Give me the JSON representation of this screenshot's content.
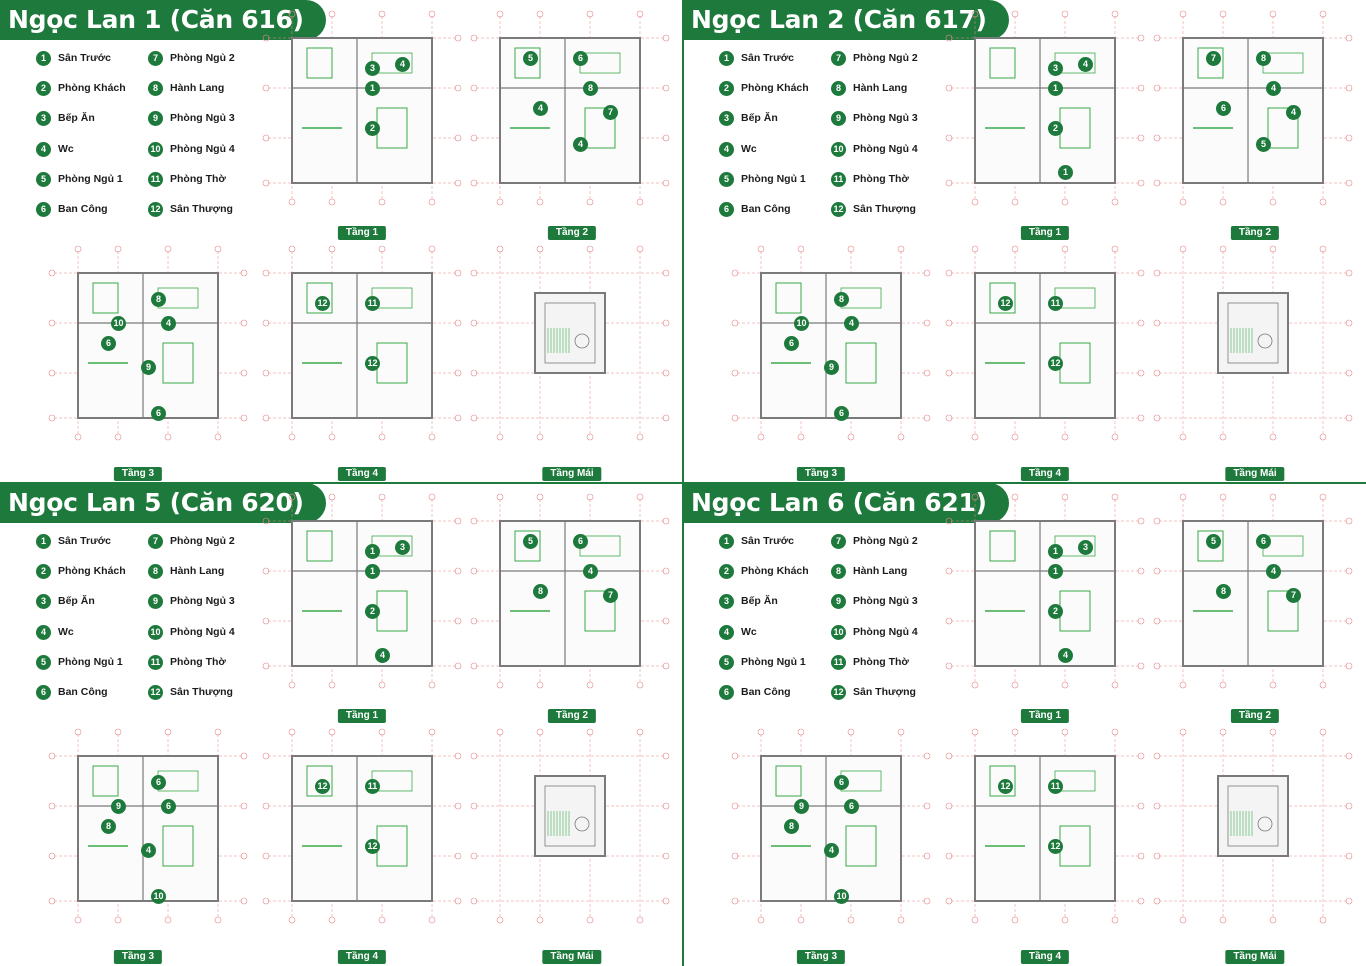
{
  "colors": {
    "brand_green": "#1e7a3c",
    "grid_red": "#e8888a",
    "wall_gray": "#7a7a7a",
    "furniture_green": "#3aaa4a"
  },
  "legend": [
    {
      "n": "1",
      "label": "Sân Trước"
    },
    {
      "n": "2",
      "label": "Phòng Khách"
    },
    {
      "n": "3",
      "label": "Bếp Ăn"
    },
    {
      "n": "4",
      "label": "Wc"
    },
    {
      "n": "5",
      "label": "Phòng Ngủ 1"
    },
    {
      "n": "6",
      "label": "Ban Công"
    },
    {
      "n": "7",
      "label": "Phòng Ngủ 2"
    },
    {
      "n": "8",
      "label": "Hành Lang"
    },
    {
      "n": "9",
      "label": "Phòng Ngủ 3"
    },
    {
      "n": "10",
      "label": "Phòng Ngủ 4"
    },
    {
      "n": "11",
      "label": "Phòng Thờ"
    },
    {
      "n": "12",
      "label": "Sân Thượng"
    }
  ],
  "floors": {
    "f1": "Tầng 1",
    "f2": "Tầng 2",
    "f3": "Tầng 3",
    "f4": "Tầng 4",
    "roof": "Tầng Mái"
  },
  "sections": [
    {
      "title": "Ngọc Lan 1 (Căn 616)",
      "plans": [
        [
          "1",
          "2",
          "3",
          "4"
        ],
        [
          "5",
          "6",
          "4",
          "8",
          "7",
          "4"
        ],
        [
          "8",
          "10",
          "4",
          "6",
          "9",
          "6"
        ],
        [
          "12",
          "11",
          "12"
        ],
        []
      ]
    },
    {
      "title": "Ngọc Lan 2 (Căn 617)",
      "plans": [
        [
          "1",
          "2",
          "3",
          "4",
          "1"
        ],
        [
          "7",
          "8",
          "6",
          "4",
          "4",
          "5"
        ],
        [
          "8",
          "10",
          "4",
          "6",
          "9",
          "6"
        ],
        [
          "12",
          "11",
          "12"
        ],
        []
      ]
    },
    {
      "title": "Ngọc Lan 5 (Căn 620)",
      "plans": [
        [
          "1",
          "2",
          "1",
          "3",
          "4"
        ],
        [
          "5",
          "6",
          "8",
          "4",
          "7"
        ],
        [
          "6",
          "9",
          "6",
          "8",
          "4",
          "10"
        ],
        [
          "12",
          "11",
          "12"
        ],
        []
      ]
    },
    {
      "title": "Ngọc Lan 6 (Căn 621)",
      "plans": [
        [
          "1",
          "2",
          "1",
          "3",
          "4"
        ],
        [
          "5",
          "6",
          "8",
          "4",
          "7"
        ],
        [
          "6",
          "9",
          "6",
          "8",
          "4",
          "10"
        ],
        [
          "12",
          "11",
          "12"
        ],
        []
      ]
    }
  ]
}
